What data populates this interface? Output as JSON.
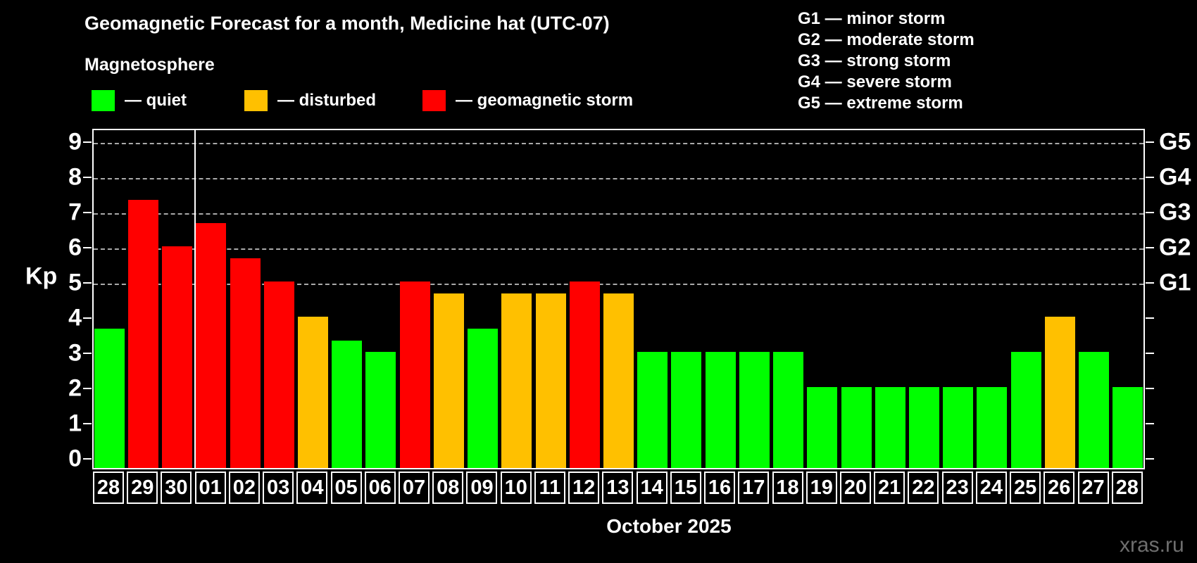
{
  "title": "Geomagnetic Forecast for a month, Medicine hat (UTC-07)",
  "subtitle": "Magnetosphere",
  "legend": [
    {
      "name": "quiet",
      "label": "— quiet",
      "color": "#00ff00"
    },
    {
      "name": "disturbed",
      "label": "— disturbed",
      "color": "#ffc000"
    },
    {
      "name": "storm",
      "label": "— geomagnetic storm",
      "color": "#ff0000"
    }
  ],
  "g_scale_legend": [
    "G1 — minor storm",
    "G2 — moderate storm",
    "G3 — strong storm",
    "G4 — severe storm",
    "G5 — extreme storm"
  ],
  "watermark": "xras.ru",
  "colors": {
    "background": "#000000",
    "axis": "#ffffff",
    "grid": "#aaaaaa",
    "quiet": "#00ff00",
    "disturbed": "#ffc000",
    "storm": "#ff0000",
    "watermark_text": "#6e6e6e"
  },
  "chart_data": {
    "type": "bar",
    "title": "Geomagnetic Forecast for a month, Medicine hat (UTC-07)",
    "ylabel": "Kp",
    "xlabel": "October 2025",
    "ylim": [
      0,
      9
    ],
    "yticks": [
      0,
      1,
      2,
      3,
      4,
      5,
      6,
      7,
      8,
      9
    ],
    "grid": "dashed horizontal lines at Kp 5-9 only",
    "right_axis": [
      {
        "kp": 5,
        "label": "G1"
      },
      {
        "kp": 6,
        "label": "G2"
      },
      {
        "kp": 7,
        "label": "G3"
      },
      {
        "kp": 8,
        "label": "G4"
      },
      {
        "kp": 9,
        "label": "G5"
      }
    ],
    "month_boundary_after_index": 2,
    "categories": [
      "28",
      "29",
      "30",
      "01",
      "02",
      "03",
      "04",
      "05",
      "06",
      "07",
      "08",
      "09",
      "10",
      "11",
      "12",
      "13",
      "14",
      "15",
      "16",
      "17",
      "18",
      "19",
      "20",
      "21",
      "22",
      "23",
      "24",
      "25",
      "26",
      "27",
      "28"
    ],
    "values": [
      3.67,
      7.33,
      6.0,
      6.67,
      5.67,
      5.0,
      4.0,
      3.33,
      3.0,
      5.0,
      4.67,
      3.67,
      4.67,
      4.67,
      5.0,
      4.67,
      3.0,
      3.0,
      3.0,
      3.0,
      3.0,
      2.0,
      2.0,
      2.0,
      2.0,
      2.0,
      2.0,
      3.0,
      4.0,
      3.0,
      2.0
    ],
    "statuses": [
      "quiet",
      "storm",
      "storm",
      "storm",
      "storm",
      "storm",
      "disturbed",
      "quiet",
      "quiet",
      "storm",
      "disturbed",
      "quiet",
      "disturbed",
      "disturbed",
      "storm",
      "disturbed",
      "quiet",
      "quiet",
      "quiet",
      "quiet",
      "quiet",
      "quiet",
      "quiet",
      "quiet",
      "quiet",
      "quiet",
      "quiet",
      "quiet",
      "disturbed",
      "quiet",
      "quiet"
    ]
  }
}
